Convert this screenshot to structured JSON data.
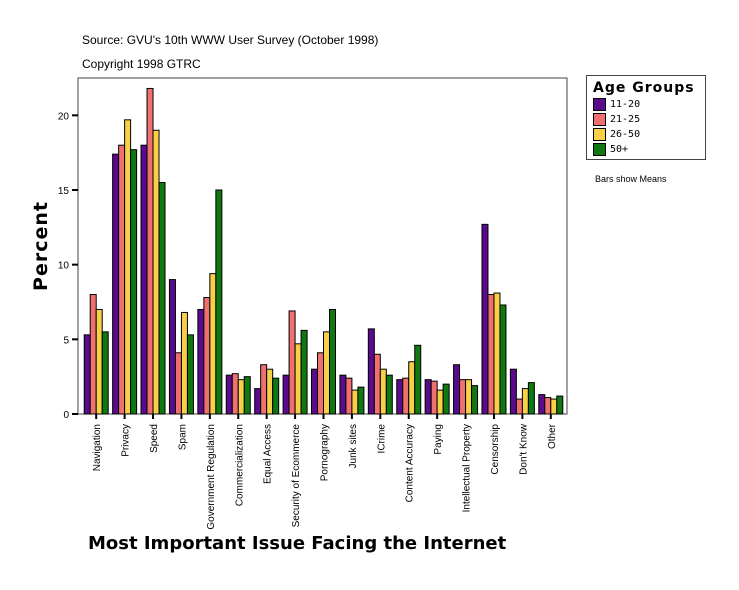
{
  "header": {
    "source": "Source: GVU's 10th WWW User Survey (October 1998)",
    "copyright": "Copyright 1998 GTRC"
  },
  "legend": {
    "title": "Age Groups",
    "note": "Bars show Means"
  },
  "chart_data": {
    "type": "bar",
    "title": "",
    "xlabel": "Most Important Issue Facing the Internet",
    "ylabel": "Percent",
    "ylim": [
      0,
      22.5
    ],
    "yticks": [
      0,
      5,
      10,
      15,
      20
    ],
    "grid": false,
    "legend_position": "right",
    "categories": [
      "Navigation",
      "Privacy",
      "Speed",
      "Spam",
      "Government Regulation",
      "Commercialization",
      "Equal Access",
      "Security of Ecommerce",
      "Pornography",
      "Junk sites",
      "ICrime",
      "Content Accuracy",
      "Paying",
      "Intellectual Property",
      "Censorship",
      "Don't Know",
      "Other"
    ],
    "series": [
      {
        "name": "11-20",
        "color": "#5a0a8c",
        "values": [
          5.3,
          17.4,
          18.0,
          9.0,
          7.0,
          2.6,
          1.7,
          2.6,
          3.0,
          2.6,
          5.7,
          2.3,
          2.3,
          3.3,
          12.7,
          3.0,
          1.3
        ]
      },
      {
        "name": "21-25",
        "color": "#f07070",
        "values": [
          8.0,
          18.0,
          21.8,
          4.1,
          7.8,
          2.7,
          3.3,
          6.9,
          4.1,
          2.4,
          4.0,
          2.4,
          2.2,
          2.3,
          8.0,
          1.0,
          1.1
        ]
      },
      {
        "name": "26-50",
        "color": "#f8d048",
        "values": [
          7.0,
          19.7,
          19.0,
          6.8,
          9.4,
          2.3,
          3.0,
          4.7,
          5.5,
          1.6,
          3.0,
          3.5,
          1.6,
          2.3,
          8.1,
          1.7,
          1.0
        ]
      },
      {
        "name": "50+",
        "color": "#107810",
        "values": [
          5.5,
          17.7,
          15.5,
          5.3,
          15.0,
          2.5,
          2.4,
          5.6,
          7.0,
          1.8,
          2.6,
          4.6,
          2.0,
          1.9,
          7.3,
          2.1,
          1.2
        ]
      }
    ]
  }
}
